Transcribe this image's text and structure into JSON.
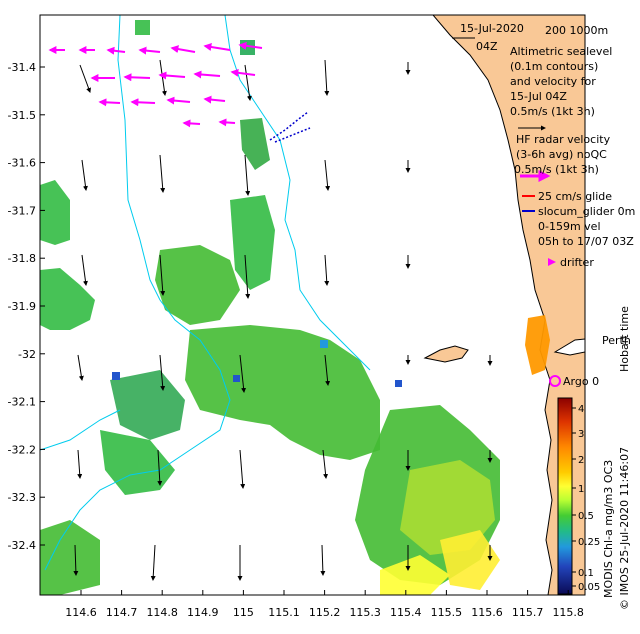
{
  "header": {
    "date": "15-Jul-2020",
    "time": "04Z",
    "scale_label": "200  1000m"
  },
  "legend": {
    "altimetric_lines": [
      "Altimetric sealevel",
      "(0.1m contours)",
      "and velocity for",
      "15-Jul 04Z",
      "0.5m/s (1kt 3h)"
    ],
    "hf_lines": [
      "HF radar velocity",
      "(3-6h avg) noQC",
      "0.5m/s (1kt 3h)"
    ],
    "glider_lines": [
      "25 cm/s glide",
      "slocum_glider 0m",
      "0-159m vel",
      "05h to 17/07 03Z"
    ],
    "drifter_label": "drifter",
    "argo_label": "Argo 0",
    "perth_label": "Perth",
    "hobart_label": "Hobart time",
    "credit": "© IMOS 25-Jul-2020 11:46:07",
    "colorbar_title": "MODIS Chl-a mg/m3 OC3"
  },
  "axes": {
    "lat_ticks": [
      "-31.4",
      "-31.5",
      "-31.6",
      "-31.7",
      "-31.8",
      "-31.9",
      "-32",
      "-32.1",
      "-32.2",
      "-32.3",
      "-32.4"
    ],
    "lon_ticks": [
      "114.6",
      "114.7",
      "114.8",
      "114.9",
      "115",
      "115.1",
      "115.2",
      "115.3",
      "115.4",
      "115.5",
      "115.6",
      "115.7",
      "115.8"
    ]
  },
  "colorbar": {
    "ticks": [
      "4",
      "3",
      "2",
      "1",
      "0.5",
      "0.25",
      "0.1",
      "0.05"
    ],
    "colors": [
      "#8b0000",
      "#cc2200",
      "#ee5500",
      "#ff9900",
      "#ffcc00",
      "#ffff33",
      "#ccff33",
      "#66dd33",
      "#22cc66",
      "#22bbaa",
      "#2299dd",
      "#2255cc",
      "#1a1a99",
      "#0a0a66"
    ]
  },
  "colors": {
    "land": "#f9c896",
    "hf_arrow": "#ff00ff",
    "isobath": "#00ccee",
    "chl_green": "#33bb33",
    "chl_yellow": "#ffff33"
  }
}
